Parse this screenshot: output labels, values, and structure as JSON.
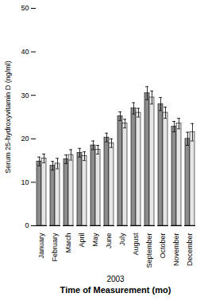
{
  "chart_data": {
    "type": "bar",
    "ylabel": "Serum 25-hydroxyvitamin D (ng/ml)",
    "xlabel": "Time of Measurement (mo)",
    "annotations": [
      "2003"
    ],
    "categories": [
      "January",
      "February",
      "March",
      "April",
      "May",
      "June",
      "July",
      "August",
      "September",
      "October",
      "November",
      "December"
    ],
    "series": [
      {
        "color": "#8c8c8c",
        "values": [
          14.8,
          13.8,
          15.3,
          16.8,
          18.5,
          20.3,
          25.2,
          27.0,
          30.5,
          28.0,
          22.8,
          20.0
        ],
        "errors": [
          1.0,
          1.0,
          1.0,
          1.0,
          1.0,
          1.0,
          1.0,
          1.3,
          1.5,
          1.5,
          1.2,
          1.5
        ]
      },
      {
        "color": "#e6e6e6",
        "values": [
          15.5,
          14.3,
          16.3,
          16.0,
          17.5,
          19.0,
          23.5,
          26.0,
          29.5,
          26.0,
          23.5,
          21.5
        ],
        "errors": [
          1.0,
          1.2,
          1.2,
          1.0,
          1.0,
          1.0,
          1.0,
          1.0,
          1.5,
          1.3,
          1.2,
          2.0
        ]
      }
    ],
    "ylim": [
      0,
      50
    ],
    "yticks": [
      0,
      10,
      20,
      30,
      40,
      50
    ],
    "grid": false
  }
}
